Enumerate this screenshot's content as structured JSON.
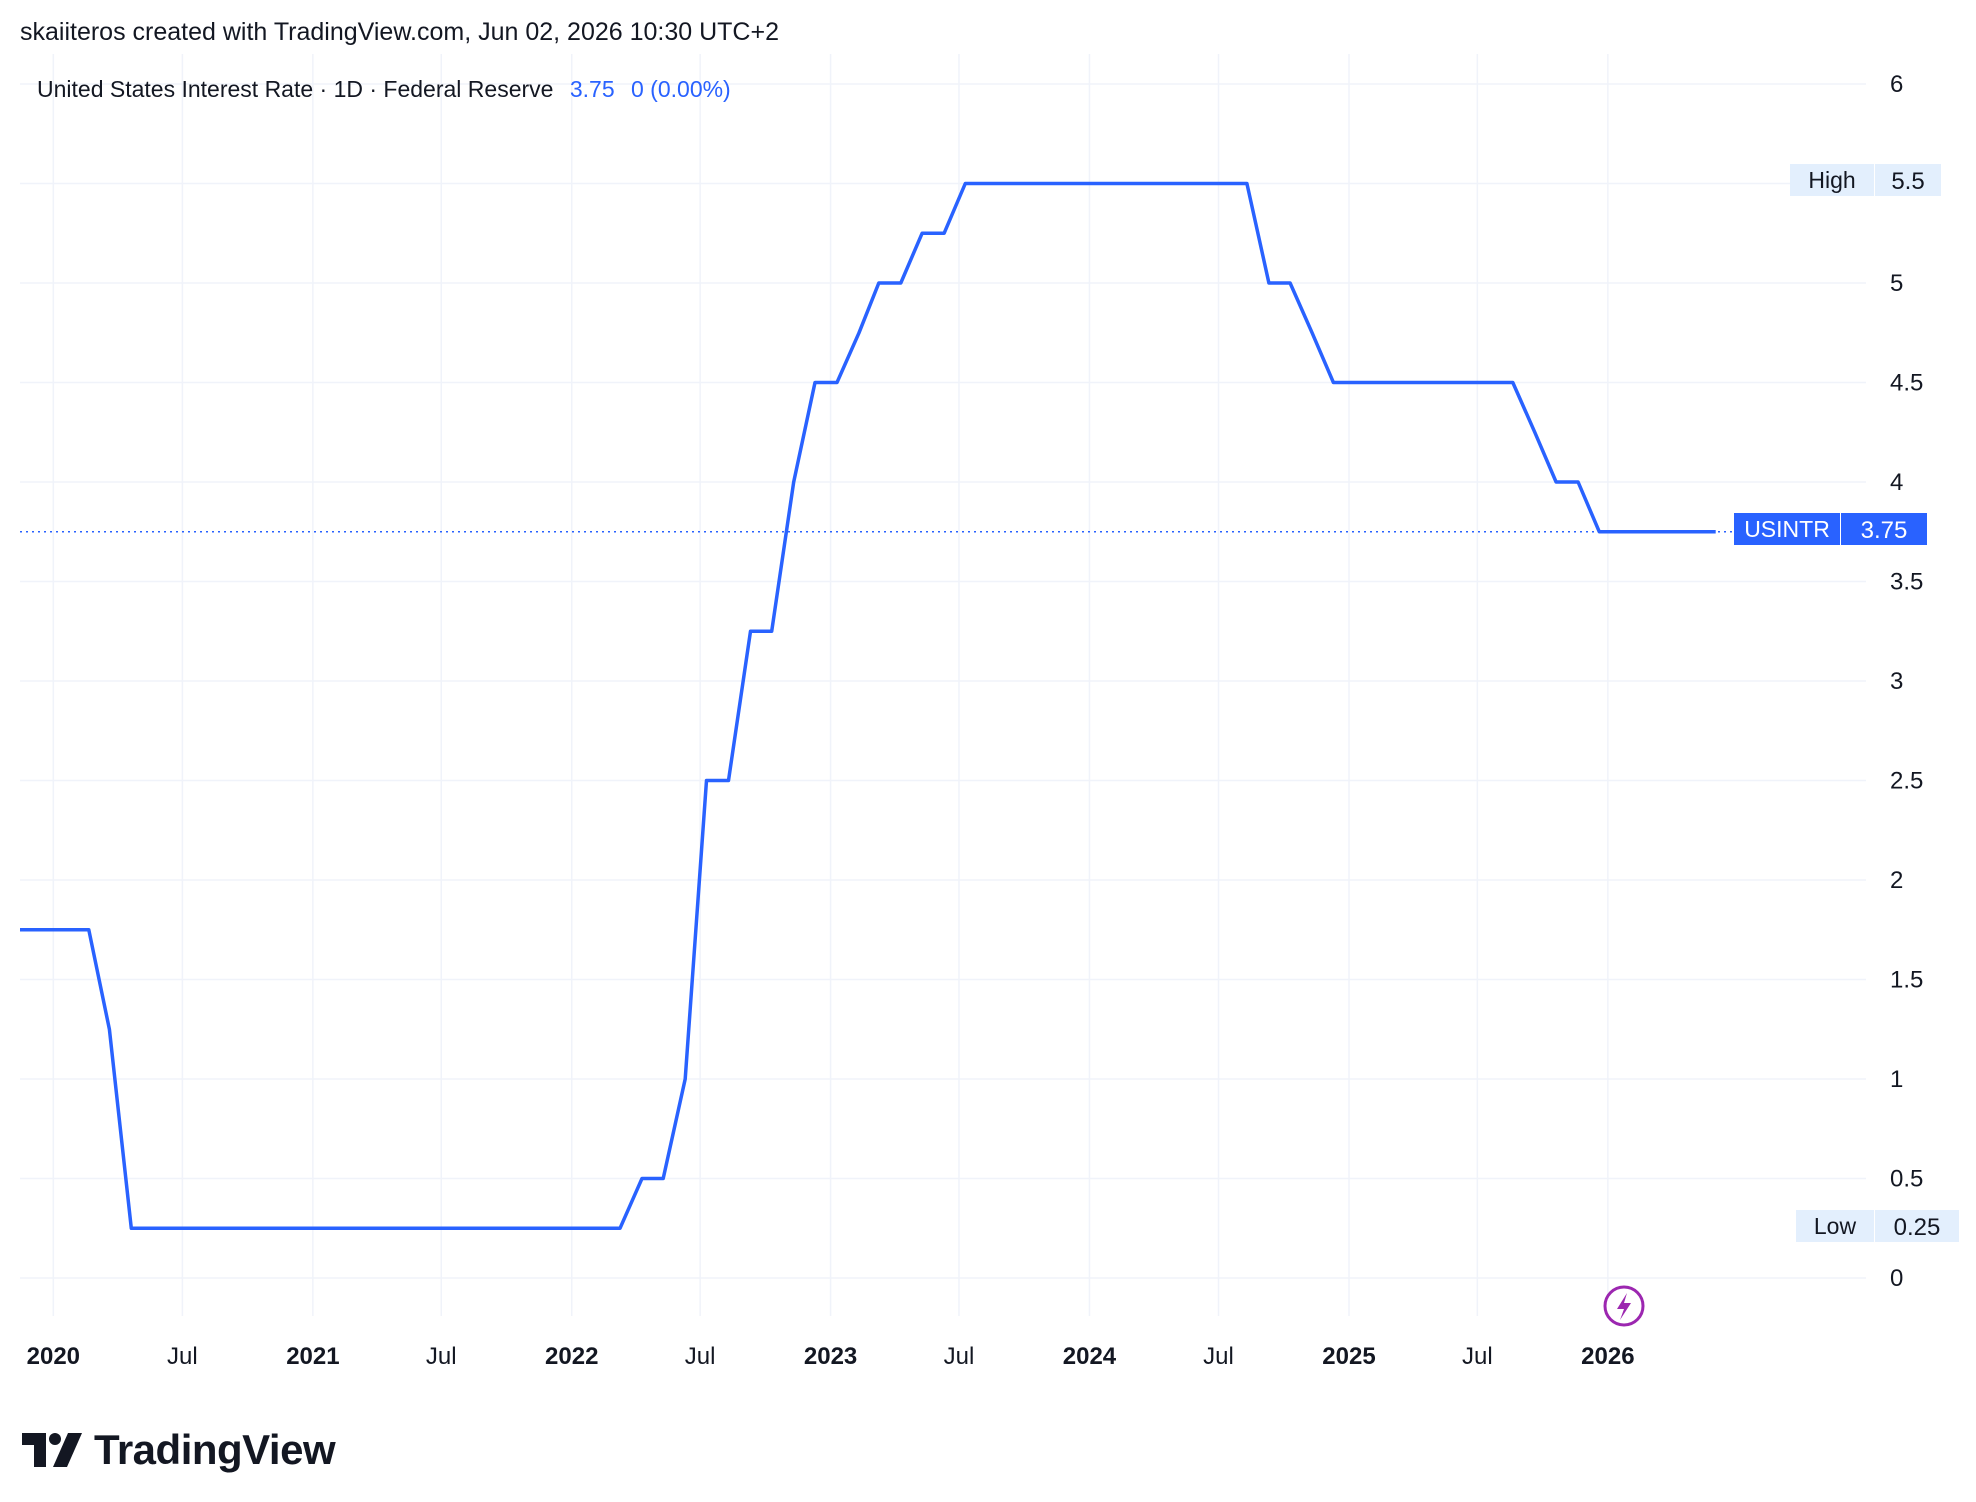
{
  "header": {
    "attribution": "skaiiteros created with TradingView.com, Jun 02, 2026 10:30 UTC+2"
  },
  "legend": {
    "symbol_text": "United States Interest Rate · 1D · Federal Reserve",
    "last_value": "3.75",
    "change": "0 (0.00%)"
  },
  "badges": {
    "high_label": "High",
    "high_value": "5.5",
    "low_label": "Low",
    "low_value": "0.25",
    "current_label": "USINTR",
    "current_value": "3.75"
  },
  "brand": {
    "name": "TradingView",
    "icon": "tradingview-logo-icon"
  },
  "icons": {
    "flash": "lightning-bolt-icon"
  },
  "colors": {
    "line": "#2962ff",
    "grid": "#f0f3fa",
    "badge_bg": "#e3effd",
    "current_bg": "#2962ff",
    "flash": "#9c27b0"
  },
  "chart_data": {
    "type": "line",
    "title": "United States Interest Rate · 1D · Federal Reserve",
    "xlabel": "",
    "ylabel": "",
    "x_range": [
      "2019-11-15",
      "2026-12-31"
    ],
    "ylim": [
      -0.25,
      6.1
    ],
    "y_ticks": [
      "0",
      "0.5",
      "1",
      "1.5",
      "2",
      "2.5",
      "3",
      "3.5",
      "4",
      "4.5",
      "5",
      "5.5",
      "6"
    ],
    "x_ticks": [
      {
        "label": "2020",
        "date": "2020-01-01",
        "major": true
      },
      {
        "label": "Jul",
        "date": "2020-07-01",
        "major": false
      },
      {
        "label": "2021",
        "date": "2021-01-01",
        "major": true
      },
      {
        "label": "Jul",
        "date": "2021-07-01",
        "major": false
      },
      {
        "label": "2022",
        "date": "2022-01-01",
        "major": true
      },
      {
        "label": "Jul",
        "date": "2022-07-01",
        "major": false
      },
      {
        "label": "2023",
        "date": "2023-01-01",
        "major": true
      },
      {
        "label": "Jul",
        "date": "2023-07-01",
        "major": false
      },
      {
        "label": "2024",
        "date": "2024-01-01",
        "major": true
      },
      {
        "label": "Jul",
        "date": "2024-07-01",
        "major": false
      },
      {
        "label": "2025",
        "date": "2025-01-01",
        "major": true
      },
      {
        "label": "Jul",
        "date": "2025-07-01",
        "major": false
      },
      {
        "label": "2026",
        "date": "2026-01-01",
        "major": true
      }
    ],
    "grid": true,
    "series": [
      {
        "name": "USINTR",
        "points": [
          [
            "2019-11-15",
            1.75
          ],
          [
            "2020-02-20",
            1.75
          ],
          [
            "2020-03-20",
            1.25
          ],
          [
            "2020-04-20",
            0.25
          ],
          [
            "2022-03-10",
            0.25
          ],
          [
            "2022-04-10",
            0.5
          ],
          [
            "2022-05-10",
            0.5
          ],
          [
            "2022-06-10",
            1.0
          ],
          [
            "2022-07-10",
            2.5
          ],
          [
            "2022-08-10",
            2.5
          ],
          [
            "2022-09-10",
            3.25
          ],
          [
            "2022-10-10",
            3.25
          ],
          [
            "2022-11-10",
            4.0
          ],
          [
            "2022-12-10",
            4.5
          ],
          [
            "2023-01-10",
            4.5
          ],
          [
            "2023-02-10",
            4.75
          ],
          [
            "2023-03-10",
            5.0
          ],
          [
            "2023-04-10",
            5.0
          ],
          [
            "2023-05-10",
            5.25
          ],
          [
            "2023-06-10",
            5.25
          ],
          [
            "2023-07-10",
            5.5
          ],
          [
            "2024-08-10",
            5.5
          ],
          [
            "2024-09-10",
            5.0
          ],
          [
            "2024-10-10",
            5.0
          ],
          [
            "2024-11-10",
            4.75
          ],
          [
            "2024-12-10",
            4.5
          ],
          [
            "2025-08-20",
            4.5
          ],
          [
            "2025-09-20",
            4.25
          ],
          [
            "2025-10-20",
            4.0
          ],
          [
            "2025-11-20",
            4.0
          ],
          [
            "2025-12-20",
            3.75
          ],
          [
            "2026-06-02",
            3.75
          ]
        ]
      }
    ],
    "high": 5.5,
    "low": 0.25,
    "last": 3.75
  }
}
